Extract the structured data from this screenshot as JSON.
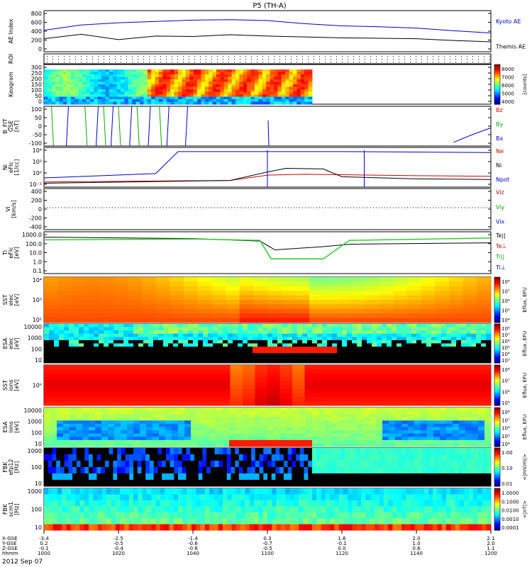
{
  "title": "P5 (TH-A)",
  "date_label": "2012 Sep 07",
  "ephemeris": {
    "row_labels": [
      "X-GSE",
      "Y-GSE",
      "Z-GSE",
      "hhmm"
    ],
    "columns": [
      {
        "x": "-3.4",
        "y": "0.2",
        "z": "-0.1",
        "t": "1000"
      },
      {
        "x": "-2.5",
        "y": "-0.5",
        "z": "-0.4",
        "t": "1020"
      },
      {
        "x": "-1.4",
        "y": "-0.6",
        "z": "-0.6",
        "t": "1040"
      },
      {
        "x": "0.3",
        "y": "-0.7",
        "z": "-0.5",
        "t": "1100"
      },
      {
        "x": "1.6",
        "y": "-0.1",
        "z": "0.0",
        "t": "1120"
      },
      {
        "x": "2.0",
        "y": "1.0",
        "z": "0.6",
        "t": "1140"
      },
      {
        "x": "2.1",
        "y": "2.0",
        "z": "1.1",
        "t": "1200"
      }
    ]
  },
  "panels": {
    "ae": {
      "ylabel": "AE Index",
      "ticks": [
        "800",
        "600",
        "400",
        "200",
        "0"
      ],
      "legend": [
        {
          "text": "Kyoto AE",
          "color": "#0000cc"
        },
        {
          "text": "Themis AE",
          "color": "#000000"
        }
      ]
    },
    "roi": {
      "ylabel": "ROI"
    },
    "keogram": {
      "ylabel": "Keogram",
      "ticks": [
        "300",
        "250",
        "200",
        "150",
        "100",
        "50",
        "0"
      ],
      "cbar_ticks": [
        "8000",
        "7000",
        "6000",
        "5000",
        "4000"
      ],
      "cbar_label": "[counts]"
    },
    "bfit": {
      "ylabel": "B_FIT",
      "sub": "GSE",
      "unit": "[nT]",
      "ticks": [
        "100",
        "50",
        "0",
        "-50",
        "-100"
      ],
      "legend": [
        {
          "text": "Bz",
          "color": "#cc0000"
        },
        {
          "text": "By",
          "color": "#00aa00"
        },
        {
          "text": "Bx",
          "color": "#0000cc"
        }
      ]
    },
    "ni": {
      "ylabel": "Ni",
      "sub": "eFlc",
      "unit": "[1/cc]",
      "ticks": [
        "10⁴",
        "10²",
        "10⁰",
        "10⁻²"
      ],
      "legend": [
        {
          "text": "Ne",
          "color": "#cc0000"
        },
        {
          "text": "Ni",
          "color": "#000000"
        },
        {
          "text": "Npot",
          "color": "#0000cc"
        }
      ]
    },
    "vi": {
      "ylabel": "Vi",
      "unit": "[km/s]",
      "ticks": [
        "400",
        "200",
        "0",
        "-200",
        "-400"
      ],
      "legend": [
        {
          "text": "Viz",
          "color": "#cc0000"
        },
        {
          "text": "Viy",
          "color": "#00aa00"
        },
        {
          "text": "Vix",
          "color": "#0000cc"
        }
      ]
    },
    "ti": {
      "ylabel": "Ti",
      "sub": "eFlc",
      "unit": "[eV]",
      "ticks": [
        "1000.0",
        "100.0",
        "10.0",
        "1.0",
        "0.1"
      ],
      "legend": [
        {
          "text": "Te||",
          "color": "#000000"
        },
        {
          "text": "Te⊥",
          "color": "#cc0000"
        },
        {
          "text": "Ti||",
          "color": "#00aa00"
        },
        {
          "text": "Ti⊥",
          "color": "#0000cc"
        }
      ]
    },
    "sst_e": {
      "ylabel": "SST",
      "sub": "elec",
      "unit": "[eV]",
      "ticks": [
        "10⁴",
        "10³",
        "10²"
      ],
      "cbar_ticks": [
        "10⁸",
        "10⁷",
        "10⁶",
        "10⁵",
        "10⁴"
      ],
      "cbar_label": "Eflux, EFU"
    },
    "esa_e": {
      "ylabel": "ESA",
      "sub": "elec",
      "unit": "[eV]",
      "ticks": [
        "10000",
        "1000",
        "100",
        "10"
      ],
      "cbar_ticks": [
        "10⁸",
        "10⁷",
        "10⁶",
        "10⁵",
        "10⁴",
        "10³"
      ],
      "cbar_label": "Eflux, EFU"
    },
    "sst_i": {
      "ylabel": "SST",
      "sub": "ions",
      "unit": "[eV]",
      "ticks": [
        "10⁵"
      ],
      "cbar_ticks": [
        "10⁸",
        "10⁷",
        "10⁶",
        "10⁵"
      ],
      "cbar_label": "Eflux, EFU"
    },
    "esa_i": {
      "ylabel": "ESA",
      "sub": "ions",
      "unit": "[eV]",
      "ticks": [
        "10000",
        "1000",
        "100",
        "10"
      ],
      "cbar_ticks": [
        "10⁸",
        "10⁷",
        "10⁶",
        "10⁵",
        "10⁴"
      ],
      "cbar_label": "Eflux, EFU"
    },
    "fbk_e": {
      "ylabel": "FBK",
      "sub": "efp12",
      "unit": "[Hz]",
      "ticks": [
        "1000",
        "100",
        "10"
      ],
      "cbar_ticks": [
        "1.00",
        "0.10",
        "0.01"
      ],
      "cbar_label": "<|mV/m|>"
    },
    "fbk_b": {
      "ylabel": "FBK",
      "sub": "scm1",
      "unit": "[Hz]",
      "ticks": [
        "1000",
        "100",
        "10"
      ],
      "cbar_ticks": [
        "1.0000",
        "0.1000",
        "0.0100",
        "0.0010",
        "0.0001"
      ],
      "cbar_label": "<|nT|>"
    }
  },
  "chart_data": [
    {
      "type": "line",
      "panel": "AE Index",
      "x_unit": "hhmm",
      "xlim": [
        "1000",
        "1200"
      ],
      "ylim": [
        0,
        800
      ],
      "series": [
        {
          "name": "Kyoto AE",
          "x": [
            "1000",
            "1010",
            "1020",
            "1030",
            "1040",
            "1050",
            "1100",
            "1110",
            "1120",
            "1130",
            "1140",
            "1150",
            "1200"
          ],
          "values": [
            420,
            540,
            590,
            620,
            650,
            660,
            640,
            570,
            520,
            500,
            470,
            410,
            360
          ]
        },
        {
          "name": "Themis AE",
          "x": [
            "1000",
            "1010",
            "1020",
            "1030",
            "1040",
            "1050",
            "1100",
            "1110",
            "1120",
            "1130",
            "1140",
            "1150",
            "1200"
          ],
          "values": [
            230,
            330,
            210,
            290,
            280,
            320,
            290,
            270,
            250,
            240,
            230,
            190,
            160
          ]
        }
      ]
    },
    {
      "type": "heatmap",
      "panel": "Keogram",
      "ylim": [
        0,
        300
      ],
      "clim": [
        4000,
        8000
      ],
      "note": "data present 1000-1112"
    },
    {
      "type": "line",
      "panel": "B_FIT GSE",
      "ylim": [
        -100,
        100
      ],
      "series": [
        {
          "name": "Bx",
          "x": [
            "1150",
            "1155",
            "1200"
          ],
          "values": [
            -95,
            -50,
            -10
          ]
        }
      ]
    },
    {
      "type": "line",
      "panel": "Ni",
      "log_y": true,
      "ylim": [
        0.01,
        100000
      ],
      "series": [
        {
          "name": "Ne",
          "x": [
            "1000",
            "1050",
            "1100",
            "1110",
            "1120",
            "1140",
            "1200"
          ],
          "values": [
            0.05,
            0.1,
            1,
            1.5,
            1.2,
            0.8,
            0.6
          ]
        },
        {
          "name": "Ni",
          "x": [
            "1000",
            "1050",
            "1100",
            "1105",
            "1115",
            "1120",
            "1140",
            "1200"
          ],
          "values": [
            0.03,
            0.1,
            4,
            20,
            15,
            0.5,
            0.2,
            0.15
          ]
        },
        {
          "name": "Npot",
          "x": [
            "1000",
            "1030",
            "1036",
            "1040",
            "1100",
            "1120",
            "1200"
          ],
          "values": [
            0.3,
            2,
            30000,
            30000,
            30000,
            30000,
            20000
          ]
        }
      ]
    },
    {
      "type": "line",
      "panel": "Vi",
      "ylim": [
        -500,
        500
      ],
      "series": [
        {
          "name": "Vix",
          "x": [
            "1000",
            "1200"
          ],
          "values": [
            0,
            0
          ]
        }
      ]
    },
    {
      "type": "line",
      "panel": "Ti",
      "log_y": true,
      "ylim": [
        0.1,
        3000
      ],
      "series": [
        {
          "name": "Te||",
          "x": [
            "1000",
            "1040",
            "1058",
            "1102",
            "1115",
            "1122",
            "1200"
          ],
          "values": [
            1500,
            1000,
            500,
            40,
            100,
            200,
            300
          ]
        },
        {
          "name": "Ti||",
          "x": [
            "1000",
            "1040",
            "1058",
            "1101",
            "1115",
            "1122",
            "1200"
          ],
          "values": [
            700,
            900,
            600,
            3,
            3,
            600,
            1200
          ]
        }
      ]
    },
    {
      "type": "heatmap",
      "panel": "SST elec",
      "clim": [
        "10⁴",
        "10⁸"
      ]
    },
    {
      "type": "heatmap",
      "panel": "ESA elec",
      "clim": [
        "10³",
        "10⁸"
      ]
    },
    {
      "type": "heatmap",
      "panel": "SST ions",
      "clim": [
        "10⁵",
        "10⁸"
      ]
    },
    {
      "type": "heatmap",
      "panel": "ESA ions",
      "clim": [
        "10⁴",
        "10⁸"
      ]
    },
    {
      "type": "heatmap",
      "panel": "FBK efp12",
      "clim": [
        0.01,
        1.0
      ]
    },
    {
      "type": "heatmap",
      "panel": "FBK scm1",
      "clim": [
        0.0001,
        1.0
      ]
    }
  ]
}
